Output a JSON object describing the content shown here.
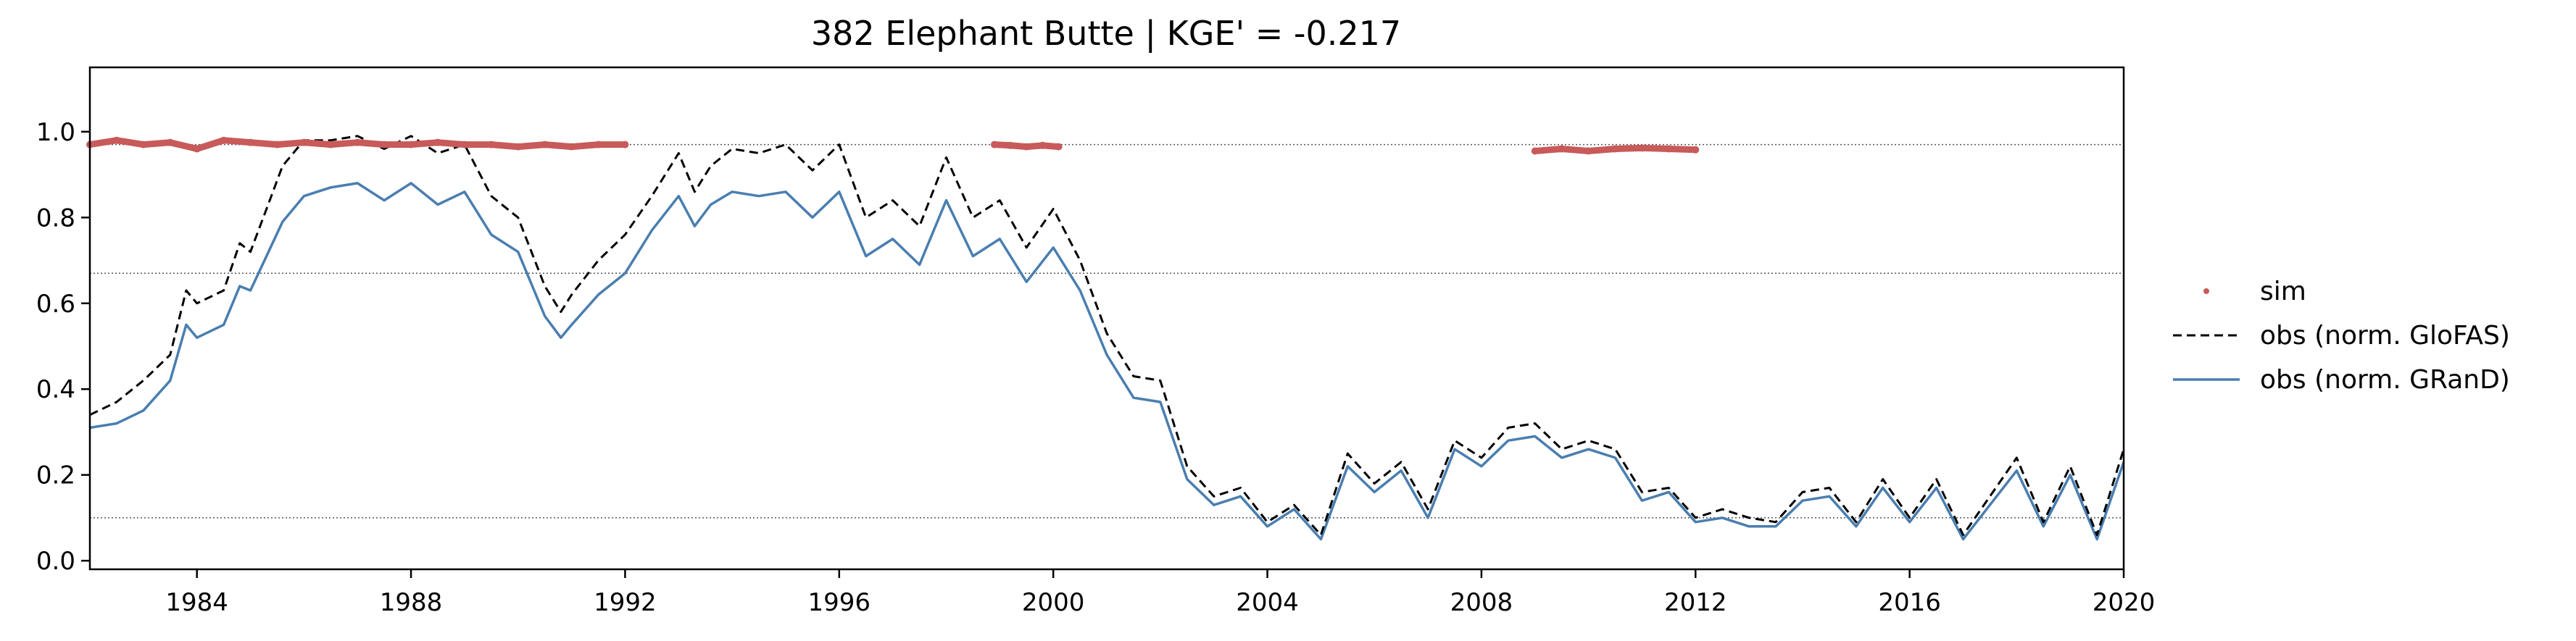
{
  "chart_data": {
    "type": "line",
    "title": "382  Elephant Butte | KGE' = -0.217",
    "xlim": [
      1982.0,
      2020.0
    ],
    "ylim": [
      -0.02,
      1.15
    ],
    "x_ticks": [
      1984,
      1988,
      1992,
      1996,
      2000,
      2004,
      2008,
      2012,
      2016,
      2020
    ],
    "x_tick_labels": [
      "1984",
      "1988",
      "1992",
      "1996",
      "2000",
      "2004",
      "2008",
      "2012",
      "2016",
      "2020"
    ],
    "y_ticks": [
      0.0,
      0.2,
      0.4,
      0.6,
      0.8,
      1.0
    ],
    "y_tick_labels": [
      "0.0",
      "0.2",
      "0.4",
      "0.6",
      "0.8",
      "1.0"
    ],
    "reference_lines": [
      0.97,
      0.67,
      0.1
    ],
    "grid": false,
    "legend_position": "right",
    "colors": {
      "sim": "#c85a5a",
      "glofas": "#000000",
      "grand": "#4a7eb0",
      "reference": "#555555"
    },
    "series": [
      {
        "name": "sim",
        "style": "points",
        "segments": [
          {
            "x": [
              1982.0,
              1982.5,
              1983.0,
              1983.5,
              1984.0,
              1984.5,
              1985.0,
              1985.5,
              1986.0,
              1986.5,
              1987.0,
              1987.5,
              1988.0,
              1988.5,
              1989.0,
              1989.5,
              1990.0,
              1990.5,
              1991.0,
              1991.5,
              1992.0
            ],
            "y": [
              0.97,
              0.98,
              0.97,
              0.975,
              0.96,
              0.98,
              0.975,
              0.97,
              0.975,
              0.97,
              0.975,
              0.97,
              0.97,
              0.975,
              0.97,
              0.97,
              0.965,
              0.97,
              0.965,
              0.97,
              0.97
            ]
          },
          {
            "x": [
              1998.9,
              1999.2,
              1999.5,
              1999.8,
              2000.1
            ],
            "y": [
              0.97,
              0.968,
              0.965,
              0.968,
              0.965
            ]
          },
          {
            "x": [
              2009.0,
              2009.5,
              2010.0,
              2010.5,
              2011.0,
              2011.5,
              2012.0
            ],
            "y": [
              0.955,
              0.96,
              0.955,
              0.96,
              0.962,
              0.96,
              0.958
            ]
          }
        ]
      },
      {
        "name": "obs (norm. GloFAS)",
        "style": "dashed",
        "x": [
          1982.0,
          1982.5,
          1983.0,
          1983.5,
          1983.8,
          1984.0,
          1984.5,
          1984.8,
          1985.0,
          1985.3,
          1985.6,
          1986.0,
          1986.5,
          1987.0,
          1987.5,
          1988.0,
          1988.5,
          1989.0,
          1989.5,
          1990.0,
          1990.5,
          1990.8,
          1991.0,
          1991.5,
          1992.0,
          1992.5,
          1993.0,
          1993.3,
          1993.6,
          1994.0,
          1994.5,
          1995.0,
          1995.5,
          1996.0,
          1996.5,
          1997.0,
          1997.5,
          1998.0,
          1998.5,
          1999.0,
          1999.5,
          2000.0,
          2000.5,
          2001.0,
          2001.5,
          2002.0,
          2002.5,
          2003.0,
          2003.5,
          2004.0,
          2004.5,
          2005.0,
          2005.5,
          2006.0,
          2006.5,
          2007.0,
          2007.5,
          2008.0,
          2008.5,
          2009.0,
          2009.5,
          2010.0,
          2010.5,
          2011.0,
          2011.5,
          2012.0,
          2012.5,
          2013.0,
          2013.5,
          2014.0,
          2014.5,
          2015.0,
          2015.5,
          2016.0,
          2016.5,
          2017.0,
          2017.5,
          2018.0,
          2018.5,
          2019.0,
          2019.5,
          2020.0
        ],
        "y": [
          0.34,
          0.37,
          0.42,
          0.48,
          0.63,
          0.6,
          0.63,
          0.74,
          0.72,
          0.82,
          0.92,
          0.98,
          0.98,
          0.99,
          0.96,
          0.99,
          0.95,
          0.97,
          0.85,
          0.8,
          0.64,
          0.58,
          0.62,
          0.7,
          0.76,
          0.85,
          0.95,
          0.86,
          0.92,
          0.96,
          0.95,
          0.97,
          0.91,
          0.97,
          0.8,
          0.84,
          0.78,
          0.94,
          0.8,
          0.84,
          0.73,
          0.82,
          0.7,
          0.53,
          0.43,
          0.42,
          0.22,
          0.15,
          0.17,
          0.09,
          0.13,
          0.06,
          0.25,
          0.18,
          0.23,
          0.12,
          0.28,
          0.24,
          0.31,
          0.32,
          0.26,
          0.28,
          0.26,
          0.16,
          0.17,
          0.1,
          0.12,
          0.1,
          0.09,
          0.16,
          0.17,
          0.09,
          0.19,
          0.1,
          0.19,
          0.06,
          0.15,
          0.24,
          0.09,
          0.22,
          0.06,
          0.26
        ]
      },
      {
        "name": "obs (norm. GRanD)",
        "style": "solid",
        "x": [
          1982.0,
          1982.5,
          1983.0,
          1983.5,
          1983.8,
          1984.0,
          1984.5,
          1984.8,
          1985.0,
          1985.3,
          1985.6,
          1986.0,
          1986.5,
          1987.0,
          1987.5,
          1988.0,
          1988.5,
          1989.0,
          1989.5,
          1990.0,
          1990.5,
          1990.8,
          1991.0,
          1991.5,
          1992.0,
          1992.5,
          1993.0,
          1993.3,
          1993.6,
          1994.0,
          1994.5,
          1995.0,
          1995.5,
          1996.0,
          1996.5,
          1997.0,
          1997.5,
          1998.0,
          1998.5,
          1999.0,
          1999.5,
          2000.0,
          2000.5,
          2001.0,
          2001.5,
          2002.0,
          2002.5,
          2003.0,
          2003.5,
          2004.0,
          2004.5,
          2005.0,
          2005.5,
          2006.0,
          2006.5,
          2007.0,
          2007.5,
          2008.0,
          2008.5,
          2009.0,
          2009.5,
          2010.0,
          2010.5,
          2011.0,
          2011.5,
          2012.0,
          2012.5,
          2013.0,
          2013.5,
          2014.0,
          2014.5,
          2015.0,
          2015.5,
          2016.0,
          2016.5,
          2017.0,
          2017.5,
          2018.0,
          2018.5,
          2019.0,
          2019.5,
          2020.0
        ],
        "y": [
          0.31,
          0.32,
          0.35,
          0.42,
          0.55,
          0.52,
          0.55,
          0.64,
          0.63,
          0.71,
          0.79,
          0.85,
          0.87,
          0.88,
          0.84,
          0.88,
          0.83,
          0.86,
          0.76,
          0.72,
          0.57,
          0.52,
          0.55,
          0.62,
          0.67,
          0.77,
          0.85,
          0.78,
          0.83,
          0.86,
          0.85,
          0.86,
          0.8,
          0.86,
          0.71,
          0.75,
          0.69,
          0.84,
          0.71,
          0.75,
          0.65,
          0.73,
          0.63,
          0.48,
          0.38,
          0.37,
          0.19,
          0.13,
          0.15,
          0.08,
          0.12,
          0.05,
          0.22,
          0.16,
          0.21,
          0.1,
          0.26,
          0.22,
          0.28,
          0.29,
          0.24,
          0.26,
          0.24,
          0.14,
          0.16,
          0.09,
          0.1,
          0.08,
          0.08,
          0.14,
          0.15,
          0.08,
          0.17,
          0.09,
          0.17,
          0.05,
          0.13,
          0.21,
          0.08,
          0.2,
          0.05,
          0.23
        ]
      }
    ]
  }
}
